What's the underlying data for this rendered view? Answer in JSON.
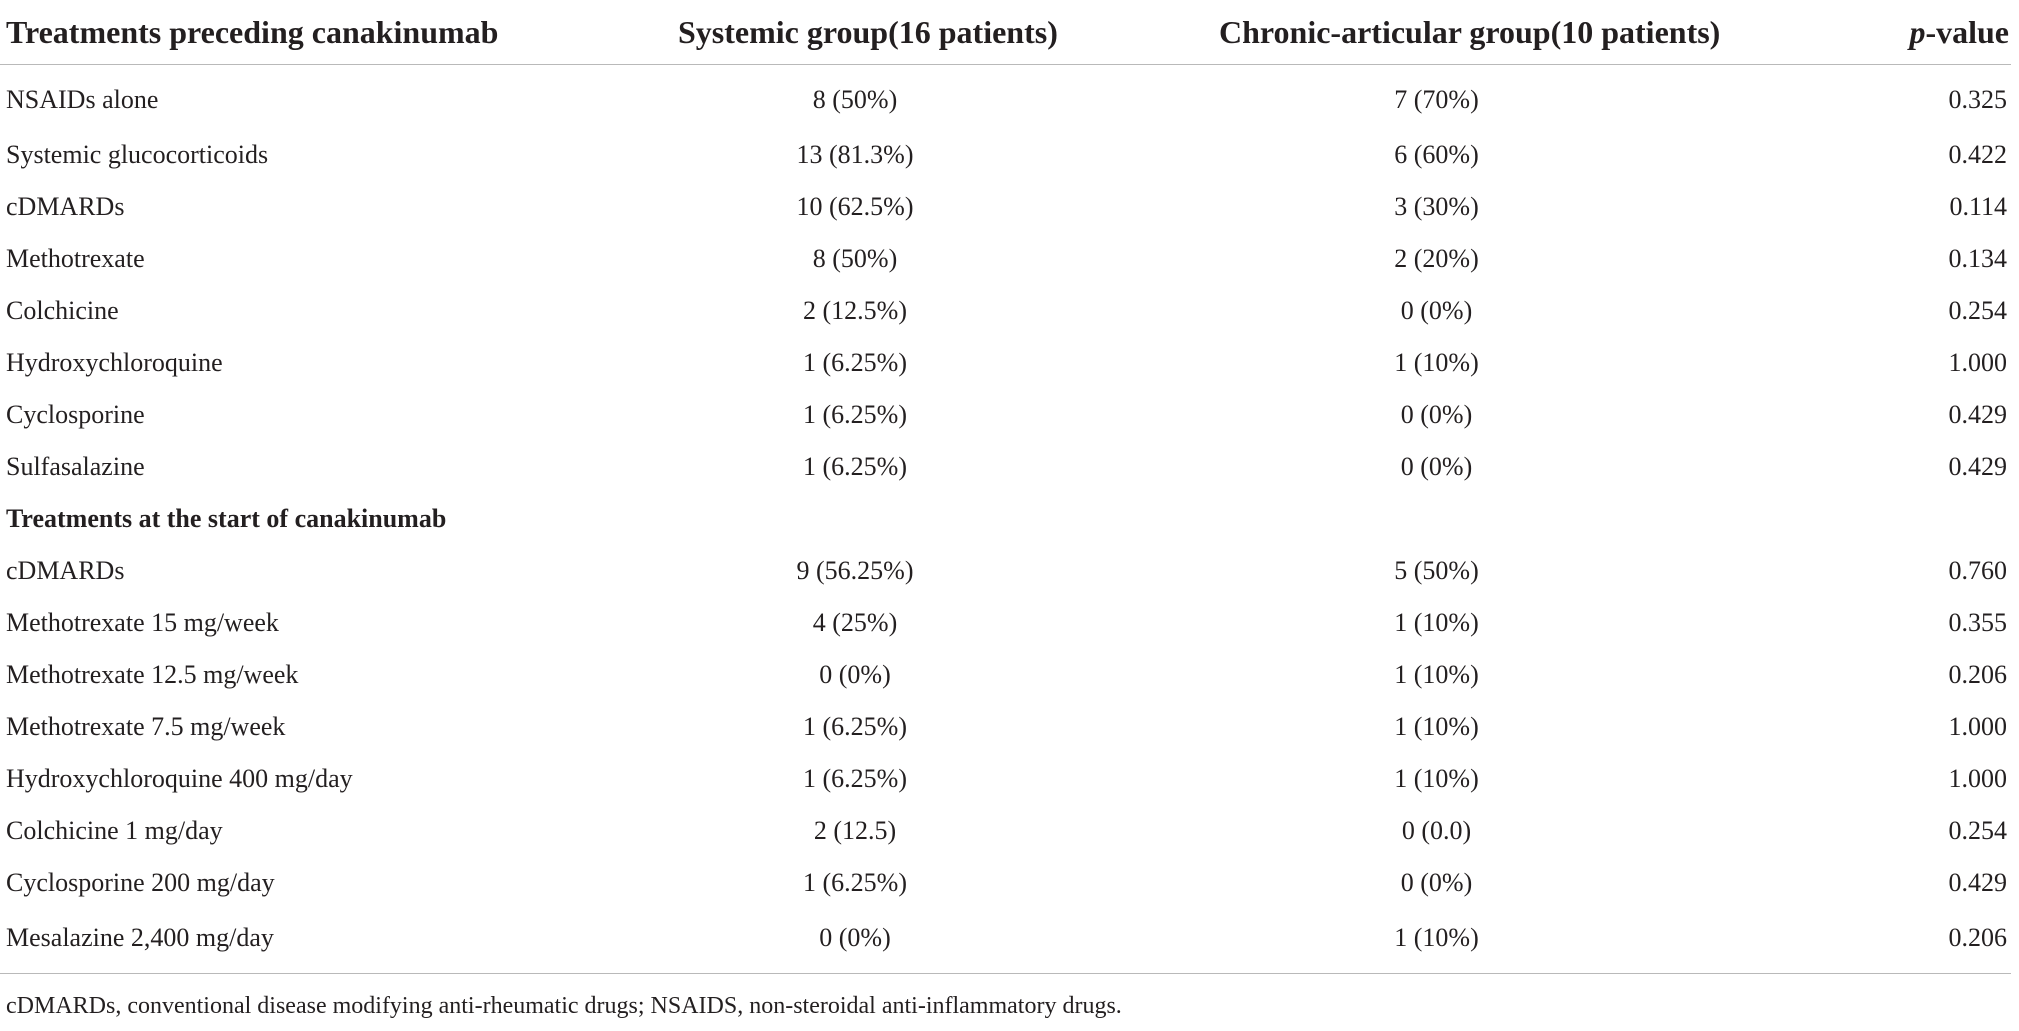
{
  "table": {
    "headers": {
      "label": "Treatments preceding canakinumab",
      "systemic": "Systemic group(16 patients)",
      "chronic": "Chronic-articular group(10 patients)",
      "pvalue_prefix": "p",
      "pvalue_suffix": "-value"
    },
    "rows_preceding": [
      {
        "label": "NSAIDs alone",
        "systemic": "8 (50%)",
        "chronic": "7 (70%)",
        "p": "0.325"
      },
      {
        "label": "Systemic glucocorticoids",
        "systemic": "13 (81.3%)",
        "chronic": "6 (60%)",
        "p": "0.422"
      },
      {
        "label": "cDMARDs",
        "systemic": "10 (62.5%)",
        "chronic": "3 (30%)",
        "p": "0.114"
      },
      {
        "label": "Methotrexate",
        "systemic": "8 (50%)",
        "chronic": "2 (20%)",
        "p": "0.134"
      },
      {
        "label": "Colchicine",
        "systemic": "2 (12.5%)",
        "chronic": "0 (0%)",
        "p": "0.254"
      },
      {
        "label": "Hydroxychloroquine",
        "systemic": "1 (6.25%)",
        "chronic": "1 (10%)",
        "p": "1.000"
      },
      {
        "label": "Cyclosporine",
        "systemic": "1 (6.25%)",
        "chronic": "0 (0%)",
        "p": "0.429"
      },
      {
        "label": "Sulfasalazine",
        "systemic": "1 (6.25%)",
        "chronic": "0 (0%)",
        "p": "0.429"
      }
    ],
    "section_title": "Treatments at the start of canakinumab",
    "rows_start": [
      {
        "label": "cDMARDs",
        "systemic": "9 (56.25%)",
        "chronic": "5 (50%)",
        "p": "0.760"
      },
      {
        "label": "Methotrexate 15 mg/week",
        "systemic": "4 (25%)",
        "chronic": "1 (10%)",
        "p": "0.355"
      },
      {
        "label": "Methotrexate 12.5 mg/week",
        "systemic": "0 (0%)",
        "chronic": "1 (10%)",
        "p": "0.206"
      },
      {
        "label": "Methotrexate 7.5 mg/week",
        "systemic": "1 (6.25%)",
        "chronic": "1 (10%)",
        "p": "1.000"
      },
      {
        "label": "Hydroxychloroquine 400 mg/day",
        "systemic": "1 (6.25%)",
        "chronic": "1 (10%)",
        "p": "1.000"
      },
      {
        "label": "Colchicine 1 mg/day",
        "systemic": "2 (12.5)",
        "chronic": "0 (0.0)",
        "p": "0.254"
      },
      {
        "label": "Cyclosporine 200 mg/day",
        "systemic": "1 (6.25%)",
        "chronic": "0 (0%)",
        "p": "0.429"
      },
      {
        "label": "Mesalazine 2,400 mg/day",
        "systemic": "0 (0%)",
        "chronic": "1 (10%)",
        "p": "0.206"
      }
    ]
  },
  "footnote": "cDMARDs, conventional disease modifying anti-rheumatic drugs; NSAIDS, non-steroidal anti-inflammatory drugs."
}
